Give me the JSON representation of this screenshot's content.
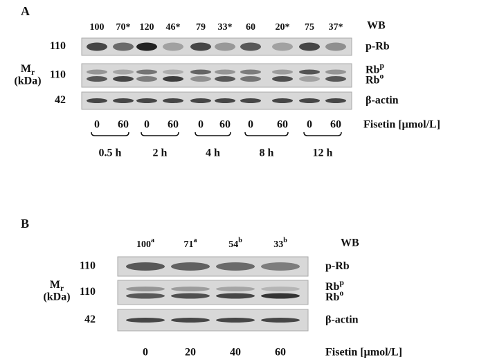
{
  "panels": [
    {
      "label": "A",
      "wb": "WB",
      "quantification": [
        {
          "text": "100"
        },
        {
          "text": "70*"
        },
        {
          "text": "120"
        },
        {
          "text": "46*"
        },
        {
          "text": "79"
        },
        {
          "text": "33*"
        },
        {
          "text": "60"
        },
        {
          "text": "20*"
        },
        {
          "text": "75"
        },
        {
          "text": "37*"
        }
      ],
      "rows": [
        {
          "mw": "110",
          "labels": [
            {
              "text": "p-Rb"
            }
          ]
        },
        {
          "mw": "110",
          "labels": [
            {
              "text": "Rb",
              "sup": "p"
            },
            {
              "text": "Rb",
              "sup": "o"
            }
          ]
        },
        {
          "mw": "42",
          "labels": [
            {
              "text": "β-actin"
            }
          ]
        }
      ],
      "mr": {
        "text": "M",
        "sub": "r",
        "unit": "(kDa)"
      },
      "doses": [
        "0",
        "60",
        "0",
        "60",
        "0",
        "60",
        "0",
        "60",
        "0",
        "60"
      ],
      "treatment": "Fisetin [µmol/L]",
      "times": [
        "0.5 h",
        "2 h",
        "4 h",
        "8 h",
        "12 h"
      ]
    },
    {
      "label": "B",
      "wb": "WB",
      "quantification": [
        {
          "text": "100",
          "sup": "a"
        },
        {
          "text": "71",
          "sup": "a"
        },
        {
          "text": "54",
          "sup": "b"
        },
        {
          "text": "33",
          "sup": "b"
        }
      ],
      "rows": [
        {
          "mw": "110",
          "labels": [
            {
              "text": "p-Rb"
            }
          ]
        },
        {
          "mw": "110",
          "labels": [
            {
              "text": "Rb",
              "sup": "p"
            },
            {
              "text": "Rb",
              "sup": "o"
            }
          ]
        },
        {
          "mw": "42",
          "labels": [
            {
              "text": "β-actin"
            }
          ]
        }
      ],
      "mr": {
        "text": "M",
        "sub": "r",
        "unit": "(kDa)"
      },
      "doses": [
        "0",
        "20",
        "40",
        "60"
      ],
      "treatment": "Fisetin [µmol/L]"
    }
  ]
}
